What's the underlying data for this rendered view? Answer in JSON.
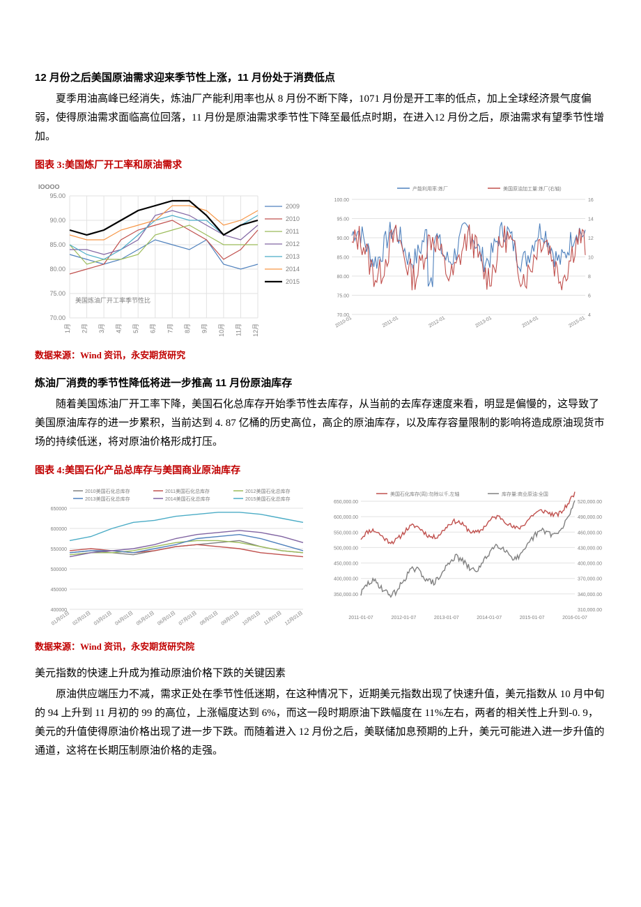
{
  "section1": {
    "title": "12 月份之后美国原油需求迎来季节性上涨，11 月份处于消费低点",
    "para": "夏季用油高峰已经消失，炼油厂产能利用率也从 8 月份不断下降，1071 月份是开工率的低点，加上全球经济景气度偏弱，使得原油需求面临高位回落，11 月份是原油需求季节性下降至最低点时期，在进入12 月份之后，原油需求有望季节性增加。"
  },
  "chart3": {
    "label": "图表 3:",
    "title": "美国炼厂开工率和原油需求",
    "left": {
      "top_label": "IOOOO",
      "inner_label": "美国炼油厂开工率季节性比",
      "ylim": [
        70,
        95
      ],
      "yticks": [
        70.0,
        75.0,
        80.0,
        85.0,
        90.0,
        95.0
      ],
      "xticks": [
        "1月",
        "2月",
        "3月",
        "4月",
        "5月",
        "6月",
        "7月",
        "8月",
        "9月",
        "10月",
        "11月",
        "12月"
      ],
      "colors": {
        "grid": "#e2e2e2",
        "bg": "#ffffff"
      },
      "series": [
        {
          "name": "2009",
          "color": "#4f81bd",
          "width": 1.2,
          "data": [
            83,
            82,
            81,
            82,
            84,
            86,
            85,
            84,
            86,
            81,
            80,
            81
          ]
        },
        {
          "name": "2010",
          "color": "#c0504d",
          "width": 1.2,
          "data": [
            79,
            80,
            81,
            86,
            88,
            89,
            90,
            88,
            86,
            82,
            84,
            88
          ]
        },
        {
          "name": "2011",
          "color": "#9bbb59",
          "width": 1.2,
          "data": [
            85,
            81,
            82,
            82,
            83,
            87,
            88,
            89,
            87,
            85,
            85,
            85
          ]
        },
        {
          "name": "2012",
          "color": "#8064a2",
          "width": 1.2,
          "data": [
            84,
            84,
            83,
            84,
            86,
            91,
            92,
            91,
            89,
            87,
            86,
            89
          ]
        },
        {
          "name": "2013",
          "color": "#4bacc6",
          "width": 1.2,
          "data": [
            85,
            83,
            82,
            84,
            87,
            90,
            91,
            90,
            90,
            87,
            89,
            91
          ]
        },
        {
          "name": "2014",
          "color": "#f79646",
          "width": 1.2,
          "data": [
            87,
            86,
            86,
            88,
            89,
            90,
            93,
            93,
            92,
            89,
            90,
            92
          ]
        },
        {
          "name": "2015",
          "color": "#000000",
          "width": 2.2,
          "data": [
            88,
            87,
            88,
            90,
            92,
            93,
            94,
            94,
            91,
            87,
            89,
            90
          ]
        }
      ]
    },
    "right": {
      "legend": [
        {
          "name": "产能利用率:炼厂",
          "color": "#4f81bd"
        },
        {
          "name": "美国原油加工量:炼厂(右轴)",
          "color": "#c0504d"
        }
      ],
      "y_left_range": [
        70,
        100
      ],
      "y_left_ticks": [
        70,
        75,
        80,
        85,
        90,
        95,
        100
      ],
      "y_right_range": [
        4,
        16
      ],
      "y_right_ticks": [
        4,
        6,
        8,
        10,
        12,
        14,
        16
      ],
      "grid_color": "#e2e2e2",
      "series": [
        {
          "color": "#4f81bd",
          "width": 1.2
        },
        {
          "color": "#c0504d",
          "width": 1.2
        }
      ]
    }
  },
  "source1": {
    "prefix": "数据来源：",
    "prefix_color": "#c00000",
    "rest": "Wind 资讯，永安期货研究",
    "rest_color": "#c00000"
  },
  "section2": {
    "title": "炼油厂消费的季节性降低将进一步推高 11 月份原油库存",
    "para": "随着美国炼油厂开工率下降，美国石化总库存开始季节性去库存，从当前的去库存速度来看，明显是偏慢的，这导致了美国原油库存的进一步累积，当前达到 4. 87 亿桶的历史高位，高企的原油库存，以及库存容量限制的影响将造成原油现货市场的持续低迷，将对原油价格形成打压。"
  },
  "chart4": {
    "label": "图表 4:",
    "title": "美国石化产品总库存与美国商业原油库存",
    "left": {
      "ylim": [
        400000,
        650000
      ],
      "yticks": [
        400000,
        450000,
        500000,
        550000,
        600000,
        650000
      ],
      "xticks": [
        "01月01日",
        "02月01日",
        "03月01日",
        "04月01日",
        "05月01日",
        "06月01日",
        "07月01日",
        "08月01日",
        "09月01日",
        "10月01日",
        "11月01日",
        "12月01日"
      ],
      "grid_color": "#e2e2e2",
      "legend": [
        {
          "name": "2010美国石化总库存",
          "color": "#808080"
        },
        {
          "name": "2011美国石化总库存",
          "color": "#c0504d"
        },
        {
          "name": "2012美国石化总库存",
          "color": "#9bbb59"
        },
        {
          "name": "2013美国石化总库存",
          "color": "#4f81bd"
        },
        {
          "name": "2014美国石化总库存",
          "color": "#8064a2"
        },
        {
          "name": "2015美国石化总库存",
          "color": "#4bacc6"
        }
      ],
      "series": [
        {
          "color": "#808080",
          "data": [
            540000,
            545000,
            540000,
            535000,
            545000,
            555000,
            560000,
            565000,
            570000,
            555000,
            545000,
            540000
          ]
        },
        {
          "color": "#c0504d",
          "data": [
            545000,
            550000,
            545000,
            540000,
            545000,
            555000,
            560000,
            555000,
            550000,
            540000,
            535000,
            530000
          ]
        },
        {
          "color": "#9bbb59",
          "data": [
            535000,
            540000,
            540000,
            545000,
            555000,
            565000,
            570000,
            570000,
            565000,
            555000,
            545000,
            540000
          ]
        },
        {
          "color": "#4f81bd",
          "data": [
            540000,
            545000,
            545000,
            540000,
            550000,
            560000,
            575000,
            580000,
            585000,
            575000,
            560000,
            545000
          ]
        },
        {
          "color": "#8064a2",
          "data": [
            530000,
            540000,
            545000,
            550000,
            560000,
            575000,
            585000,
            590000,
            595000,
            590000,
            580000,
            565000
          ]
        },
        {
          "color": "#4bacc6",
          "data": [
            570000,
            580000,
            600000,
            615000,
            620000,
            630000,
            635000,
            640000,
            640000,
            635000,
            625000,
            615000
          ]
        }
      ]
    },
    "right": {
      "legend": [
        {
          "name": "美国石化库存(周):勿除以千,左轴",
          "color": "#c0504d"
        },
        {
          "name": "库存量:商业原油:全国",
          "color": "#808080"
        }
      ],
      "grid_color": "#e2e2e2",
      "xticks": [
        "2011-01-07",
        "2012-01-07",
        "2013-01-07",
        "2014-01-07",
        "2015-01-07",
        "2016-01-07"
      ],
      "y_left": [
        300000,
        650000
      ],
      "y_left_ticks": [
        350000,
        400000,
        450000,
        500000,
        550000,
        600000,
        650000
      ],
      "y_right": [
        310000,
        520000
      ],
      "y_right_ticks": [
        310000,
        340000,
        370000,
        400000,
        430000,
        460000,
        490000,
        520000
      ]
    }
  },
  "source2": "数据来源：Wind 资讯，永安期货研究院",
  "section3": {
    "title": "美元指数的快速上升成为推动原油价格下跌的关键因素",
    "para": "原油供应端压力不减，需求正处在季节性低迷期，在这种情况下，近期美元指数出现了快速升值，美元指数从 10 月中旬的 94 上升到 11 月初的 99 的高位，上涨幅度达到 6%，而这一段时期原油下跌幅度在 11%左右，两者的相关性上升到-0. 9，美元的升值使得原油价格出现了进一步下跌。而随着进入 12 月份之后，美联储加息预期的上升，美元可能进入进一步升值的通道，这将在长期压制原油价格的走强。"
  }
}
